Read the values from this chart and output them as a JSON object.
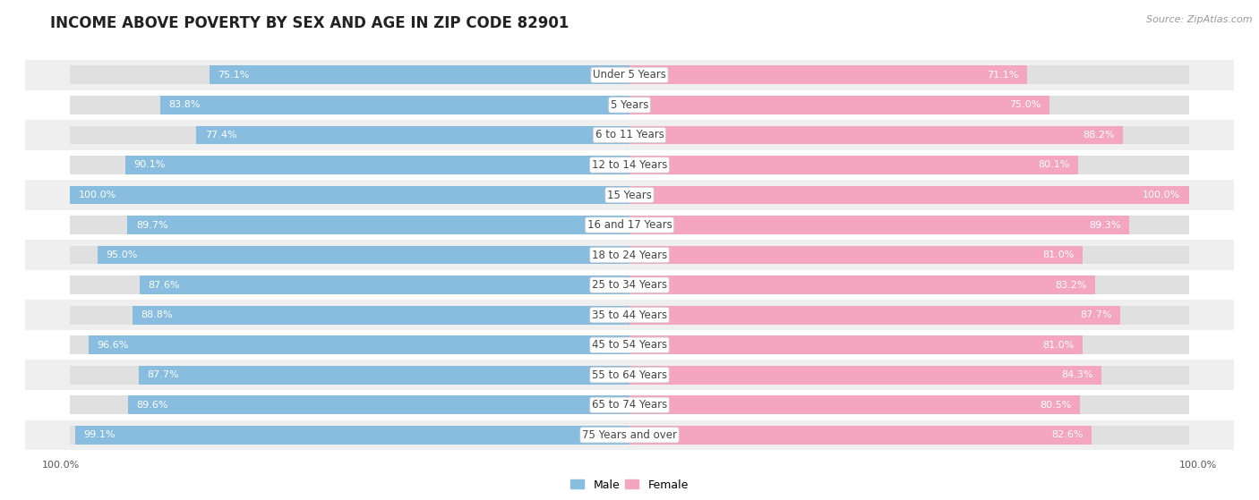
{
  "title": "INCOME ABOVE POVERTY BY SEX AND AGE IN ZIP CODE 82901",
  "source": "Source: ZipAtlas.com",
  "categories": [
    "Under 5 Years",
    "5 Years",
    "6 to 11 Years",
    "12 to 14 Years",
    "15 Years",
    "16 and 17 Years",
    "18 to 24 Years",
    "25 to 34 Years",
    "35 to 44 Years",
    "45 to 54 Years",
    "55 to 64 Years",
    "65 to 74 Years",
    "75 Years and over"
  ],
  "male_values": [
    75.1,
    83.8,
    77.4,
    90.1,
    100.0,
    89.7,
    95.0,
    87.6,
    88.8,
    96.6,
    87.7,
    89.6,
    99.1
  ],
  "female_values": [
    71.1,
    75.0,
    88.2,
    80.1,
    100.0,
    89.3,
    81.0,
    83.2,
    87.7,
    81.0,
    84.3,
    80.5,
    82.6
  ],
  "male_color": "#88bde0",
  "female_color": "#f4a6c0",
  "male_color_sat": "#5a9dc8",
  "female_color_sat": "#e8638a",
  "row_bg_odd": "#efefef",
  "row_bg_even": "#ffffff",
  "title_fontsize": 12,
  "label_fontsize": 8.5,
  "value_fontsize": 8,
  "legend_male": "Male",
  "legend_female": "Female",
  "x_max_label": "100.0%"
}
